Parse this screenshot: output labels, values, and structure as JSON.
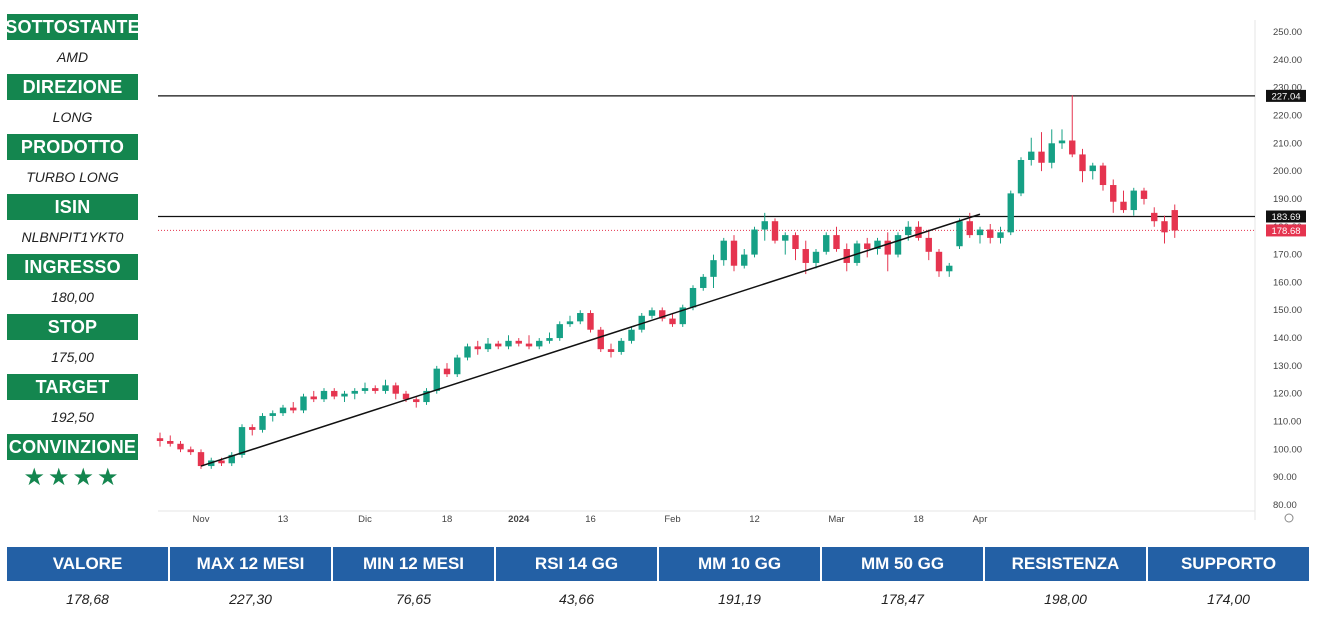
{
  "side_panel": {
    "items": [
      {
        "label": "SOTTOSTANTE",
        "value": "AMD"
      },
      {
        "label": "DIREZIONE",
        "value": "LONG"
      },
      {
        "label": "PRODOTTO",
        "value": "TURBO LONG"
      },
      {
        "label": "ISIN",
        "value": "NLBNPIT1YKT0"
      },
      {
        "label": "INGRESSO",
        "value": "180,00"
      },
      {
        "label": "STOP",
        "value": "175,00"
      },
      {
        "label": "TARGET",
        "value": "192,50"
      },
      {
        "label": "CONVINZIONE",
        "value": "★★★★"
      }
    ]
  },
  "stats": {
    "headers": [
      "VALORE",
      "MAX 12 MESI",
      "MIN 12 MESI",
      "RSI 14 GG",
      "MM 10 GG",
      "MM 50 GG",
      "RESISTENZA",
      "SUPPORTO"
    ],
    "values": [
      "178,68",
      "227,30",
      "76,65",
      "43,66",
      "191,19",
      "178,47",
      "198,00",
      "174,00"
    ]
  },
  "colors": {
    "label_green": "#14864f",
    "header_blue": "#2360a5",
    "candle_up": "#16a085",
    "candle_down": "#e5344f",
    "line": "#111111",
    "price_tag": "#e5344f"
  },
  "chart_data": {
    "type": "candlestick",
    "ylim": [
      80,
      250
    ],
    "y_ticks": [
      "250.00",
      "240.00",
      "230.00",
      "220.00",
      "210.00",
      "200.00",
      "190.00",
      "180.00",
      "170.00",
      "160.00",
      "150.00",
      "140.00",
      "130.00",
      "120.00",
      "110.00",
      "100.00",
      "90.00",
      "80.00"
    ],
    "x_ticks": [
      "Nov",
      "13",
      "Dic",
      "18",
      "2024",
      "16",
      "Feb",
      "12",
      "Mar",
      "18",
      "Apr"
    ],
    "x_tick_index": [
      4,
      12,
      20,
      28,
      35,
      42,
      50,
      58,
      66,
      74,
      80
    ],
    "bars": 78,
    "horizontal_lines": [
      {
        "label": "227.04",
        "value": 227.04,
        "style": "solid"
      },
      {
        "label": "183.69",
        "value": 183.69,
        "style": "solid"
      },
      {
        "label": "178.68",
        "value": 178.68,
        "style": "dotted"
      }
    ],
    "trendline": {
      "from": {
        "index": 4,
        "value": 94
      },
      "to": {
        "index": 80,
        "value": 184.5
      }
    },
    "candles": [
      {
        "o": 104,
        "h": 106,
        "l": 101,
        "c": 103
      },
      {
        "o": 103,
        "h": 105,
        "l": 101,
        "c": 102
      },
      {
        "o": 102,
        "h": 103,
        "l": 99,
        "c": 100
      },
      {
        "o": 100,
        "h": 101,
        "l": 98,
        "c": 99
      },
      {
        "o": 99,
        "h": 100,
        "l": 93,
        "c": 94
      },
      {
        "o": 94,
        "h": 97,
        "l": 93,
        "c": 96
      },
      {
        "o": 96,
        "h": 97,
        "l": 94,
        "c": 95
      },
      {
        "o": 95,
        "h": 99,
        "l": 94,
        "c": 98
      },
      {
        "o": 98,
        "h": 109,
        "l": 97,
        "c": 108
      },
      {
        "o": 108,
        "h": 109,
        "l": 105,
        "c": 107
      },
      {
        "o": 107,
        "h": 113,
        "l": 106,
        "c": 112
      },
      {
        "o": 112,
        "h": 114,
        "l": 110,
        "c": 113
      },
      {
        "o": 113,
        "h": 116,
        "l": 112,
        "c": 115
      },
      {
        "o": 115,
        "h": 117,
        "l": 113,
        "c": 114
      },
      {
        "o": 114,
        "h": 120,
        "l": 113,
        "c": 119
      },
      {
        "o": 119,
        "h": 121,
        "l": 117,
        "c": 118
      },
      {
        "o": 118,
        "h": 122,
        "l": 117,
        "c": 121
      },
      {
        "o": 121,
        "h": 122,
        "l": 118,
        "c": 119
      },
      {
        "o": 119,
        "h": 121,
        "l": 117,
        "c": 120
      },
      {
        "o": 120,
        "h": 122,
        "l": 118,
        "c": 121
      },
      {
        "o": 121,
        "h": 124,
        "l": 120,
        "c": 122
      },
      {
        "o": 122,
        "h": 123,
        "l": 120,
        "c": 121
      },
      {
        "o": 121,
        "h": 125,
        "l": 120,
        "c": 123
      },
      {
        "o": 123,
        "h": 124,
        "l": 118,
        "c": 120
      },
      {
        "o": 120,
        "h": 121,
        "l": 117,
        "c": 118
      },
      {
        "o": 118,
        "h": 119,
        "l": 115,
        "c": 117
      },
      {
        "o": 117,
        "h": 122,
        "l": 116,
        "c": 121
      },
      {
        "o": 121,
        "h": 130,
        "l": 120,
        "c": 129
      },
      {
        "o": 129,
        "h": 131,
        "l": 126,
        "c": 127
      },
      {
        "o": 127,
        "h": 134,
        "l": 126,
        "c": 133
      },
      {
        "o": 133,
        "h": 138,
        "l": 132,
        "c": 137
      },
      {
        "o": 137,
        "h": 139,
        "l": 134,
        "c": 136
      },
      {
        "o": 136,
        "h": 140,
        "l": 135,
        "c": 138
      },
      {
        "o": 138,
        "h": 139,
        "l": 136,
        "c": 137
      },
      {
        "o": 137,
        "h": 141,
        "l": 136,
        "c": 139
      },
      {
        "o": 139,
        "h": 140,
        "l": 137,
        "c": 138
      },
      {
        "o": 138,
        "h": 141,
        "l": 136,
        "c": 137
      },
      {
        "o": 137,
        "h": 140,
        "l": 136,
        "c": 139
      },
      {
        "o": 139,
        "h": 142,
        "l": 138,
        "c": 140
      },
      {
        "o": 140,
        "h": 146,
        "l": 139,
        "c": 145
      },
      {
        "o": 145,
        "h": 148,
        "l": 144,
        "c": 146
      },
      {
        "o": 146,
        "h": 150,
        "l": 145,
        "c": 149
      },
      {
        "o": 149,
        "h": 150,
        "l": 142,
        "c": 143
      },
      {
        "o": 143,
        "h": 144,
        "l": 135,
        "c": 136
      },
      {
        "o": 136,
        "h": 138,
        "l": 133,
        "c": 135
      },
      {
        "o": 135,
        "h": 140,
        "l": 134,
        "c": 139
      },
      {
        "o": 139,
        "h": 144,
        "l": 138,
        "c": 143
      },
      {
        "o": 143,
        "h": 149,
        "l": 142,
        "c": 148
      },
      {
        "o": 148,
        "h": 151,
        "l": 147,
        "c": 150
      },
      {
        "o": 150,
        "h": 151,
        "l": 146,
        "c": 147
      },
      {
        "o": 147,
        "h": 149,
        "l": 144,
        "c": 145
      },
      {
        "o": 145,
        "h": 152,
        "l": 144,
        "c": 151
      },
      {
        "o": 151,
        "h": 159,
        "l": 150,
        "c": 158
      },
      {
        "o": 158,
        "h": 163,
        "l": 157,
        "c": 162
      },
      {
        "o": 162,
        "h": 170,
        "l": 158,
        "c": 168
      },
      {
        "o": 168,
        "h": 176,
        "l": 166,
        "c": 175
      },
      {
        "o": 175,
        "h": 177,
        "l": 164,
        "c": 166
      },
      {
        "o": 166,
        "h": 172,
        "l": 165,
        "c": 170
      },
      {
        "o": 170,
        "h": 180,
        "l": 169,
        "c": 179
      },
      {
        "o": 179,
        "h": 185,
        "l": 175,
        "c": 182
      },
      {
        "o": 182,
        "h": 183,
        "l": 174,
        "c": 175
      },
      {
        "o": 175,
        "h": 178,
        "l": 170,
        "c": 177
      },
      {
        "o": 177,
        "h": 178,
        "l": 168,
        "c": 172
      },
      {
        "o": 172,
        "h": 175,
        "l": 163,
        "c": 167
      },
      {
        "o": 167,
        "h": 172,
        "l": 165,
        "c": 171
      },
      {
        "o": 171,
        "h": 178,
        "l": 170,
        "c": 177
      },
      {
        "o": 177,
        "h": 180,
        "l": 171,
        "c": 172
      },
      {
        "o": 172,
        "h": 174,
        "l": 164,
        "c": 167
      },
      {
        "o": 167,
        "h": 175,
        "l": 166,
        "c": 174
      },
      {
        "o": 174,
        "h": 176,
        "l": 169,
        "c": 172
      },
      {
        "o": 172,
        "h": 176,
        "l": 170,
        "c": 175
      },
      {
        "o": 175,
        "h": 178,
        "l": 164,
        "c": 170
      },
      {
        "o": 170,
        "h": 178,
        "l": 169,
        "c": 177
      },
      {
        "o": 177,
        "h": 182,
        "l": 175,
        "c": 180
      },
      {
        "o": 180,
        "h": 182,
        "l": 175,
        "c": 176
      },
      {
        "o": 176,
        "h": 179,
        "l": 168,
        "c": 171
      },
      {
        "o": 171,
        "h": 172,
        "l": 162,
        "c": 164
      },
      {
        "o": 164,
        "h": 167,
        "l": 162,
        "c": 166
      }
    ],
    "candles_late": [
      {
        "o": 173,
        "h": 183,
        "l": 172,
        "c": 182
      },
      {
        "o": 182,
        "h": 185,
        "l": 176,
        "c": 177
      },
      {
        "o": 177,
        "h": 180,
        "l": 174,
        "c": 179
      },
      {
        "o": 179,
        "h": 181,
        "l": 174,
        "c": 176
      },
      {
        "o": 176,
        "h": 180,
        "l": 174,
        "c": 178
      },
      {
        "o": 178,
        "h": 193,
        "l": 177,
        "c": 192
      },
      {
        "o": 192,
        "h": 205,
        "l": 191,
        "c": 204
      },
      {
        "o": 204,
        "h": 212,
        "l": 202,
        "c": 207
      },
      {
        "o": 207,
        "h": 214,
        "l": 200,
        "c": 203
      },
      {
        "o": 203,
        "h": 215,
        "l": 201,
        "c": 210
      },
      {
        "o": 210,
        "h": 215,
        "l": 208,
        "c": 211
      },
      {
        "o": 211,
        "h": 227.3,
        "l": 205,
        "c": 206
      },
      {
        "o": 206,
        "h": 208,
        "l": 196,
        "c": 200
      },
      {
        "o": 200,
        "h": 203,
        "l": 197,
        "c": 202
      },
      {
        "o": 202,
        "h": 203,
        "l": 193,
        "c": 195
      },
      {
        "o": 195,
        "h": 197,
        "l": 185,
        "c": 189
      },
      {
        "o": 189,
        "h": 193,
        "l": 185,
        "c": 186
      },
      {
        "o": 186,
        "h": 194,
        "l": 184,
        "c": 193
      },
      {
        "o": 193,
        "h": 194,
        "l": 188,
        "c": 190
      },
      {
        "o": 185,
        "h": 187,
        "l": 180,
        "c": 182
      },
      {
        "o": 182,
        "h": 184,
        "l": 174,
        "c": 178
      },
      {
        "o": 186,
        "h": 188,
        "l": 176,
        "c": 178.68
      }
    ]
  }
}
